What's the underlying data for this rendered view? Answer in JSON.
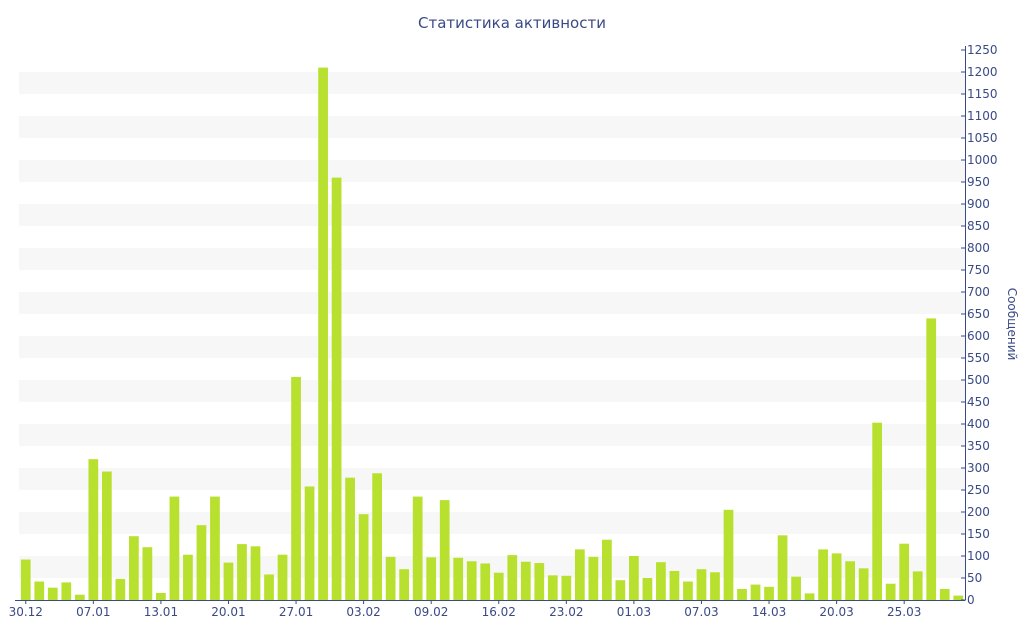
{
  "chart_data": {
    "type": "bar",
    "title": "Статистика активности",
    "xlabel": "",
    "ylabel": "Сообщений",
    "ylim": [
      0,
      1250
    ],
    "y_ticks": [
      0,
      50,
      100,
      150,
      200,
      250,
      300,
      350,
      400,
      450,
      500,
      550,
      600,
      650,
      700,
      750,
      800,
      850,
      900,
      950,
      1000,
      1050,
      1100,
      1150,
      1200,
      1250
    ],
    "y_axis_side": "right",
    "x_tick_labels": [
      {
        "label": "30.12",
        "index": 0
      },
      {
        "label": "07.01",
        "index": 5
      },
      {
        "label": "13.01",
        "index": 10
      },
      {
        "label": "20.01",
        "index": 15
      },
      {
        "label": "27.01",
        "index": 20
      },
      {
        "label": "03.02",
        "index": 25
      },
      {
        "label": "09.02",
        "index": 30
      },
      {
        "label": "16.02",
        "index": 35
      },
      {
        "label": "23.02",
        "index": 40
      },
      {
        "label": "01.03",
        "index": 45
      },
      {
        "label": "07.03",
        "index": 50
      },
      {
        "label": "14.03",
        "index": 55
      },
      {
        "label": "20.03",
        "index": 60
      },
      {
        "label": "25.03",
        "index": 65
      }
    ],
    "values": [
      92,
      42,
      28,
      40,
      12,
      320,
      292,
      48,
      145,
      120,
      16,
      235,
      103,
      170,
      235,
      85,
      127,
      122,
      58,
      103,
      507,
      258,
      1210,
      960,
      278,
      195,
      288,
      98,
      70,
      235,
      97,
      227,
      96,
      88,
      83,
      62,
      102,
      87,
      84,
      56,
      55,
      115,
      98,
      137,
      45,
      100,
      50,
      86,
      66,
      42,
      70,
      63,
      205,
      25,
      35,
      30,
      147,
      53,
      15,
      115,
      106,
      88,
      72,
      403,
      37,
      128,
      65,
      640,
      25,
      10
    ],
    "grid": "horizontal-bands",
    "colors": {
      "bar": "#b8e02e",
      "band": "#f7f7f7",
      "axis": "#3a4a85",
      "text": "#3a4a85"
    }
  }
}
